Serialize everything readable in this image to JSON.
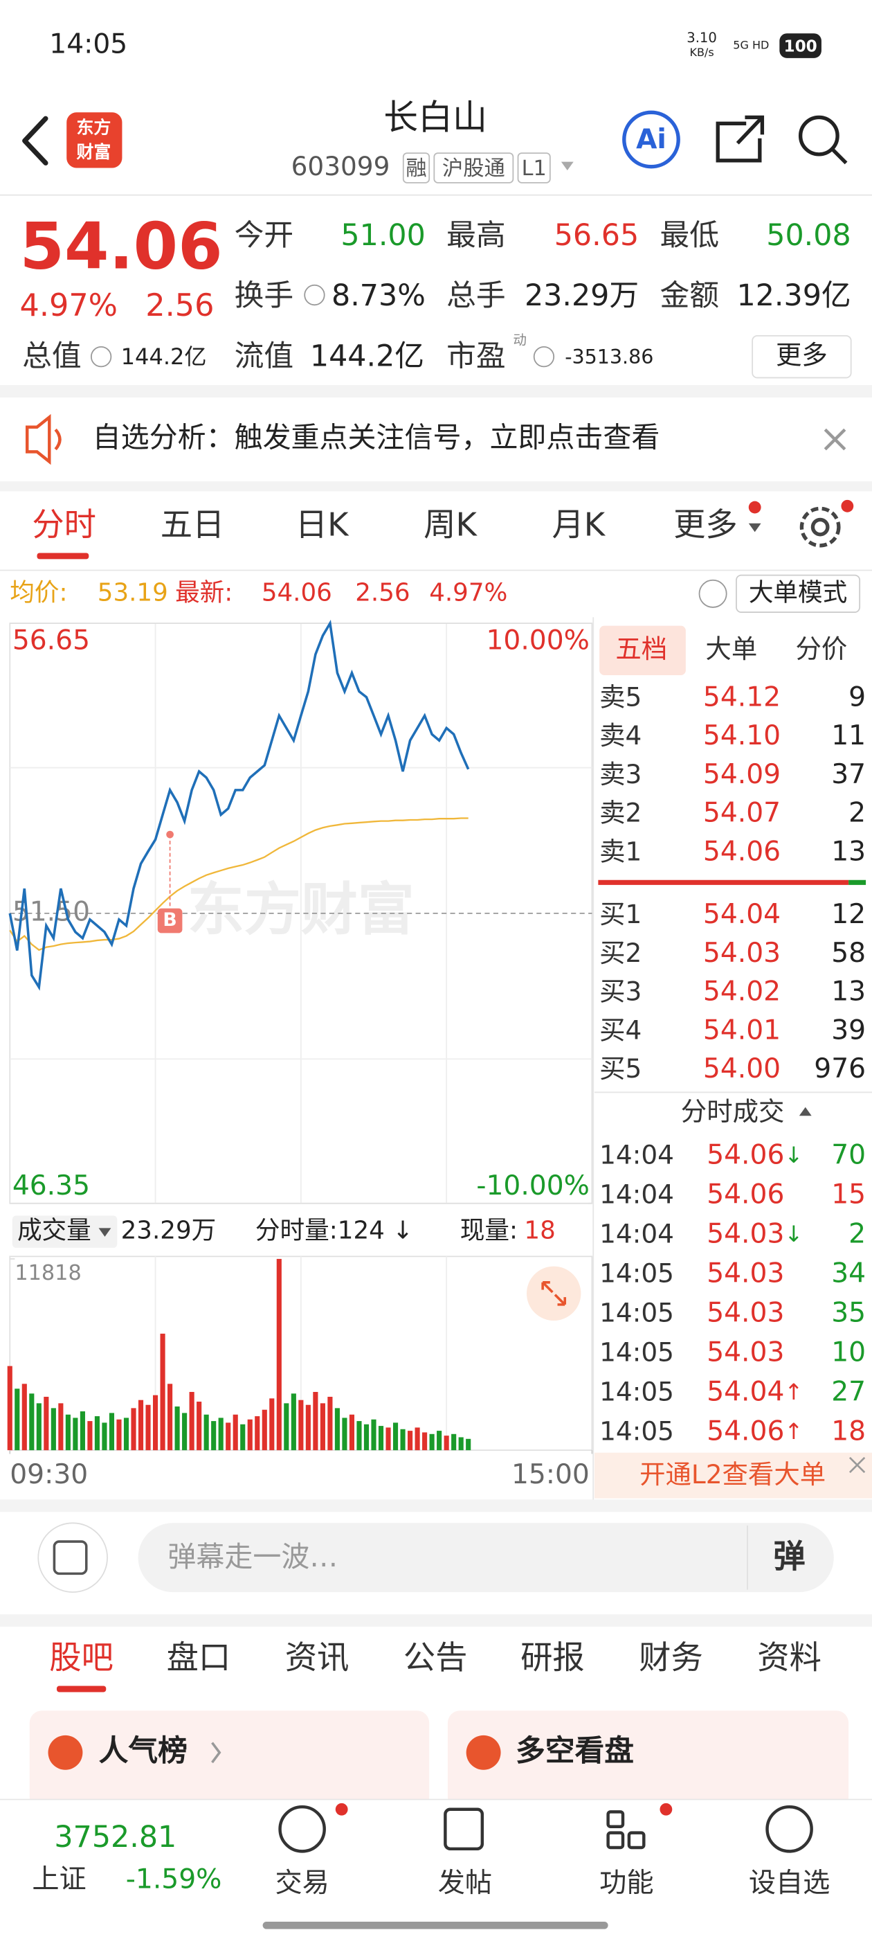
{
  "status_bar": {
    "time": "14:05",
    "net_speed": "3.10",
    "net_speed_unit": "KB/s",
    "network": "5G HD",
    "battery": "100"
  },
  "header": {
    "logo": [
      "东方",
      "财富"
    ],
    "title": "长白山",
    "code": "603099",
    "tags": [
      "融",
      "沪股通",
      "L1"
    ],
    "ai_button": "Ai"
  },
  "quote": {
    "price": "54.06",
    "change_pct": "4.97%",
    "change": "2.56",
    "fields": [
      {
        "label": "今开",
        "value": "51.00",
        "color": "#1a9a2a"
      },
      {
        "label": "最高",
        "value": "56.65",
        "color": "#e0312b"
      },
      {
        "label": "最低",
        "value": "50.08",
        "color": "#1a9a2a"
      },
      {
        "label": "换手",
        "value": "8.73%",
        "color": "#222222"
      },
      {
        "label": "总手",
        "value": "23.29万",
        "color": "#222222"
      },
      {
        "label": "金额",
        "value": "12.39亿",
        "color": "#222222"
      },
      {
        "label": "总值",
        "value": "144.2亿",
        "color": "#222222"
      },
      {
        "label": "流值",
        "value": "144.2亿",
        "color": "#222222"
      },
      {
        "label": "市盈",
        "superscript": "动",
        "value": "-3513.86",
        "color": "#222222"
      }
    ],
    "more_button": "更多"
  },
  "notice": "自选分析：触发重点关注信号，立即点击查看",
  "chart_tabs": [
    "分时",
    "五日",
    "日K",
    "周K",
    "月K",
    "更多"
  ],
  "summary": {
    "avg_label": "均价:",
    "avg": "53.19",
    "latest_label": "最新:",
    "latest": "54.06",
    "change": "2.56",
    "change_pct": "4.97%",
    "mode_button": "大单模式"
  },
  "chart_data": [
    {
      "type": "line",
      "watermark": "东方财富",
      "grid": true,
      "x": [
        0,
        3,
        6,
        9,
        12,
        15,
        18,
        21,
        24,
        27,
        30,
        33,
        36,
        39,
        42,
        45,
        48,
        51,
        54,
        57,
        60,
        63,
        66,
        69,
        72,
        75,
        78,
        81,
        84,
        87,
        90,
        93,
        96,
        99,
        102,
        105,
        108,
        111,
        114,
        117,
        120,
        123,
        126,
        129,
        132,
        135,
        138,
        141,
        144,
        147,
        150,
        153,
        156,
        159,
        162,
        165,
        168,
        171,
        174,
        177,
        180,
        183,
        186,
        189
      ],
      "xlim": [
        0,
        240
      ],
      "ylim": [
        46.35,
        56.65
      ],
      "yticks": [
        46.35,
        {
          "value": 51.5,
          "label": "51.50"
        },
        56.65
      ],
      "y2lim": [
        -10,
        10
      ],
      "y2ticks": [
        {
          "value": -10,
          "label": "-10.00%"
        },
        {
          "value": 10,
          "label": "10.00%"
        }
      ],
      "series": [
        {
          "color": "#1f6fb8",
          "values": [
            51.5,
            50.84,
            51.94,
            50.4,
            50.19,
            51.28,
            51.06,
            51.94,
            51.39,
            51.17,
            51.06,
            51.39,
            51.28,
            51.17,
            50.95,
            51.39,
            51.28,
            51.94,
            52.38,
            52.6,
            52.81,
            53.25,
            53.69,
            53.47,
            53.14,
            53.69,
            54.02,
            53.91,
            53.69,
            53.25,
            53.36,
            53.69,
            53.69,
            53.91,
            54.02,
            54.13,
            54.57,
            55.01,
            54.79,
            54.57,
            55.01,
            55.44,
            56.1,
            56.43,
            56.65,
            55.77,
            55.44,
            55.77,
            55.44,
            55.34,
            55.01,
            54.68,
            55.01,
            54.57,
            54.02,
            54.57,
            54.79,
            55.01,
            54.68,
            54.57,
            54.79,
            54.68,
            54.35,
            54.06
          ]
        },
        {
          "color": "#f0b73a",
          "values": [
            51.2,
            51.0,
            51.1,
            50.95,
            50.85,
            50.9,
            50.92,
            50.95,
            50.97,
            50.98,
            50.99,
            51.0,
            51.02,
            51.03,
            51.03,
            51.05,
            51.1,
            51.18,
            51.3,
            51.42,
            51.55,
            51.68,
            51.8,
            51.9,
            51.98,
            52.05,
            52.12,
            52.18,
            52.22,
            52.26,
            52.3,
            52.33,
            52.36,
            52.4,
            52.45,
            52.5,
            52.58,
            52.66,
            52.72,
            52.78,
            52.85,
            52.92,
            52.98,
            53.02,
            53.05,
            53.07,
            53.09,
            53.1,
            53.11,
            53.12,
            53.13,
            53.14,
            53.14,
            53.15,
            53.15,
            53.16,
            53.16,
            53.17,
            53.17,
            53.18,
            53.18,
            53.18,
            53.19,
            53.19
          ]
        }
      ],
      "annotations": [
        {
          "text": "B",
          "x": 66,
          "y": 52.9,
          "color": "#f07a70"
        }
      ]
    },
    {
      "type": "bar",
      "xlim": [
        0,
        240
      ],
      "xticks": [
        {
          "value": 0,
          "label": "09:30"
        },
        {
          "value": 240,
          "label": "15:00"
        }
      ],
      "ylim": [
        0,
        11818
      ],
      "yticks": [
        11818
      ],
      "series": [
        {
          "color": "#e0312b",
          "x": [
            0,
            6,
            15,
            21,
            33,
            45,
            51,
            54,
            57,
            60,
            63,
            66,
            75,
            78,
            90,
            93,
            99,
            102,
            105,
            108,
            111,
            120,
            123,
            126,
            129,
            132,
            141,
            156,
            165,
            168,
            171,
            180
          ],
          "values": [
            5200,
            4100,
            3300,
            2900,
            1800,
            1900,
            2600,
            3100,
            2800,
            3400,
            7200,
            4100,
            3600,
            3000,
            1700,
            2200,
            1900,
            2100,
            2500,
            3200,
            11818,
            3100,
            2800,
            3600,
            2900,
            3300,
            2200,
            1400,
            1200,
            1400,
            1100,
            900
          ]
        },
        {
          "color": "#1a9a2a",
          "x": [
            3,
            9,
            12,
            18,
            24,
            27,
            30,
            36,
            39,
            42,
            48,
            69,
            72,
            81,
            84,
            87,
            96,
            114,
            117,
            135,
            138,
            144,
            147,
            150,
            153,
            159,
            162,
            174,
            177,
            183,
            186,
            189
          ],
          "values": [
            3800,
            3500,
            2900,
            2600,
            2200,
            2000,
            2400,
            2100,
            1700,
            2300,
            2000,
            2700,
            2300,
            2200,
            1800,
            2000,
            1600,
            2900,
            3500,
            2600,
            2000,
            1800,
            1600,
            1900,
            1500,
            1700,
            1300,
            1000,
            1200,
            1000,
            800,
            700
          ]
        }
      ]
    }
  ],
  "volume_header": {
    "selector": "成交量",
    "total": "23.29万",
    "minute_volume": "分时量:124 ↓",
    "current_label": "现量:",
    "current": "18"
  },
  "order_book": {
    "tabs": [
      "五档",
      "大单",
      "分价"
    ],
    "asks": [
      {
        "label": "卖5",
        "price": "54.12",
        "volume": "9"
      },
      {
        "label": "卖4",
        "price": "54.10",
        "volume": "11"
      },
      {
        "label": "卖3",
        "price": "54.09",
        "volume": "37"
      },
      {
        "label": "卖2",
        "price": "54.07",
        "volume": "2"
      },
      {
        "label": "卖1",
        "price": "54.06",
        "volume": "13"
      }
    ],
    "bids": [
      {
        "label": "买1",
        "price": "54.04",
        "volume": "12"
      },
      {
        "label": "买2",
        "price": "54.03",
        "volume": "58"
      },
      {
        "label": "买3",
        "price": "54.02",
        "volume": "13"
      },
      {
        "label": "买4",
        "price": "54.01",
        "volume": "39"
      },
      {
        "label": "买5",
        "price": "54.00",
        "volume": "976"
      }
    ],
    "trades_title": "分时成交",
    "trades": [
      {
        "time": "14:04",
        "price": "54.06",
        "arrow": "↓",
        "arrow_color": "#1a9a2a",
        "volume": "70",
        "volume_color": "#1a9a2a"
      },
      {
        "time": "14:04",
        "price": "54.06",
        "volume": "15",
        "volume_color": "#e0312b"
      },
      {
        "time": "14:04",
        "price": "54.03",
        "arrow": "↓",
        "arrow_color": "#1a9a2a",
        "volume": "2",
        "volume_color": "#1a9a2a"
      },
      {
        "time": "14:05",
        "price": "54.03",
        "volume": "34",
        "volume_color": "#1a9a2a"
      },
      {
        "time": "14:05",
        "price": "54.03",
        "volume": "35",
        "volume_color": "#1a9a2a"
      },
      {
        "time": "14:05",
        "price": "54.03",
        "volume": "10",
        "volume_color": "#1a9a2a"
      },
      {
        "time": "14:05",
        "price": "54.04",
        "arrow": "↑",
        "arrow_color": "#e0312b",
        "volume": "27",
        "volume_color": "#1a9a2a"
      },
      {
        "time": "14:05",
        "price": "54.06",
        "arrow": "↑",
        "arrow_color": "#e0312b",
        "volume": "18",
        "volume_color": "#e0312b"
      }
    ],
    "l2_banner": "开通L2查看大单"
  },
  "comment_bar": {
    "placeholder": "弹幕走一波…",
    "danmaku_button": "弹"
  },
  "stock_tabs": [
    "股吧",
    "盘口",
    "资讯",
    "公告",
    "研报",
    "财务",
    "资料"
  ],
  "cards": [
    "人气榜",
    "多空看盘"
  ],
  "bottom_bar": {
    "index_value": "3752.81",
    "index_name": "上证",
    "index_change": "-1.59%",
    "items": [
      "交易",
      "发帖",
      "功能",
      "设自选"
    ]
  }
}
